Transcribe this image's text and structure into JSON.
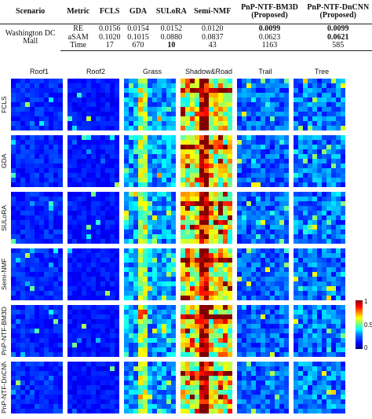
{
  "table": {
    "headers": [
      "Scenario",
      "Metric",
      "FCLS",
      "GDA",
      "SULoRA",
      "Semi-NMF",
      "PnP-NTF-BM3D",
      "PnP-NTF-DnCNN"
    ],
    "proposed_label": "(Proposed)",
    "scenario": "Washington DC Mall",
    "rows": [
      {
        "metric": "RE",
        "values": [
          "0.0156",
          "0.0154",
          "0.0152",
          "0.0120",
          "0.0099",
          "0.0099"
        ],
        "bold": [
          false,
          false,
          false,
          false,
          true,
          true
        ]
      },
      {
        "metric": "aSAM",
        "values": [
          "0.1020",
          "0.1015",
          "0.0880",
          "0.0837",
          "0.0623",
          "0.0621"
        ],
        "bold": [
          false,
          false,
          false,
          false,
          false,
          true
        ]
      },
      {
        "metric": "Time",
        "values": [
          "17",
          "670",
          "10",
          "43",
          "1163",
          "585"
        ],
        "bold": [
          false,
          false,
          true,
          false,
          false,
          false
        ]
      }
    ]
  },
  "figure": {
    "columns": [
      "Roof1",
      "Roof2",
      "Grass",
      "Shadow&Road",
      "Trail",
      "Tree"
    ],
    "rows": [
      "FCLS",
      "GDA",
      "SULoRA",
      "Semi-NMF",
      "PnP-NTF-BM3D",
      "PnP-NTF-DnCNN"
    ],
    "colorbar": {
      "max_label": "1",
      "mid_label": "0.5",
      "min_label": "0",
      "colormap": "jet"
    }
  }
}
